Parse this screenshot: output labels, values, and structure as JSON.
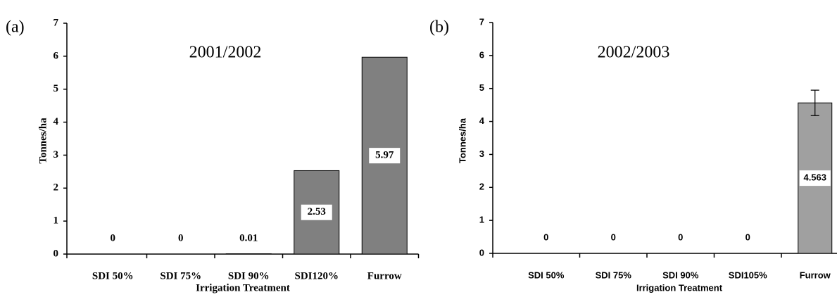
{
  "chart_data": [
    {
      "type": "bar",
      "panel": "(a)",
      "title": "2001/2002",
      "y_label": "Tonnes/ha",
      "x_label": "Irrigation Treatment",
      "categories": [
        "SDI 50%",
        "SDI 75%",
        "SDI 90%",
        "SDI120%",
        "Furrow"
      ],
      "values": [
        0,
        0,
        0.01,
        2.53,
        5.97
      ],
      "color": "#808080",
      "ylim": [
        0,
        7
      ],
      "yticks": [
        0,
        1,
        2,
        3,
        4,
        5,
        6,
        7
      ]
    },
    {
      "type": "bar",
      "panel": "(b)",
      "title": "2002/2003",
      "y_label": "Tonnes/ha",
      "x_label": "Irrigation Treatment",
      "categories": [
        "SDI 50%",
        "SDI 75%",
        "SDI 90%",
        "SDI105%",
        "Furrow"
      ],
      "values": [
        0,
        0,
        0,
        0,
        4.563
      ],
      "errors": [
        null,
        null,
        null,
        null,
        0.385
      ],
      "color": "#a0a0a0",
      "ylim": [
        0,
        7
      ],
      "yticks": [
        0,
        1,
        2,
        3,
        4,
        5,
        6,
        7
      ]
    }
  ]
}
